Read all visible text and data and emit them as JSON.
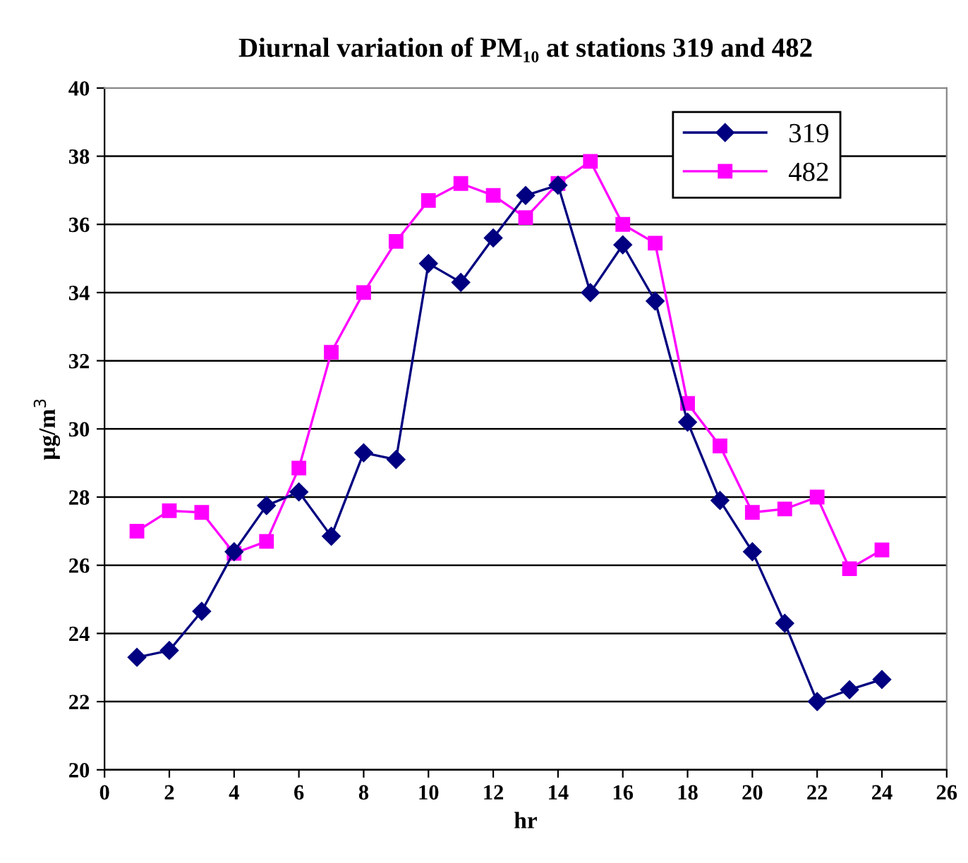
{
  "chart_data": {
    "type": "line",
    "title": "Diurnal variation of PM₁₀ at stations 319 and 482",
    "xlabel": "hr",
    "ylabel": "µg/m$^{3}$",
    "x": [
      1,
      2,
      3,
      4,
      5,
      6,
      7,
      8,
      9,
      10,
      11,
      12,
      13,
      14,
      15,
      16,
      17,
      18,
      19,
      20,
      21,
      22,
      23,
      24
    ],
    "series": [
      {
        "name": "319",
        "color": "#000080",
        "marker": "diamond",
        "values": [
          23.3,
          23.5,
          24.65,
          26.4,
          27.75,
          28.15,
          26.85,
          29.3,
          29.1,
          34.85,
          34.3,
          35.6,
          36.85,
          37.15,
          34.0,
          35.4,
          33.75,
          30.2,
          27.9,
          26.4,
          24.3,
          22.0,
          22.35,
          22.65
        ]
      },
      {
        "name": "482",
        "color": "#ff00ff",
        "marker": "square",
        "values": [
          27.0,
          27.6,
          27.55,
          26.35,
          26.7,
          28.85,
          32.25,
          34.0,
          35.5,
          36.7,
          37.2,
          36.85,
          36.2,
          37.2,
          37.85,
          36.0,
          35.45,
          30.75,
          29.5,
          27.55,
          27.65,
          28.0,
          25.9,
          26.45
        ]
      }
    ],
    "xlim": [
      0,
      26
    ],
    "xticks": [
      0,
      2,
      4,
      6,
      8,
      10,
      12,
      14,
      16,
      18,
      20,
      22,
      24,
      26
    ],
    "ylim": [
      20,
      40
    ],
    "yticks": [
      20,
      22,
      24,
      26,
      28,
      30,
      32,
      34,
      36,
      38,
      40
    ],
    "grid": "y",
    "legend": "top right",
    "line_style": "solid"
  }
}
